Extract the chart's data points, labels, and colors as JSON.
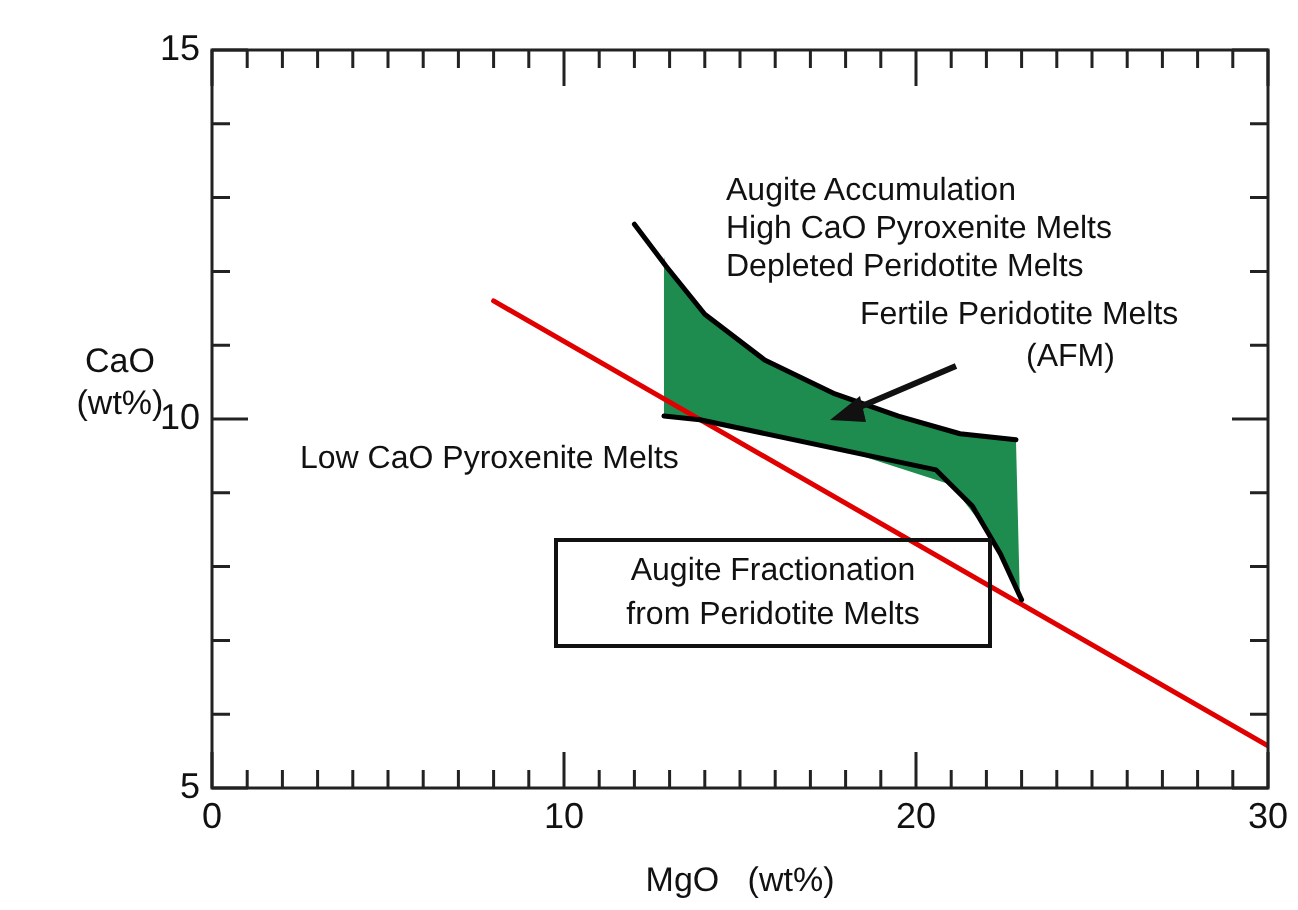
{
  "chart_data": {
    "type": "line",
    "xlabel": "MgO   (wt%)",
    "ylabel": "CaO\n(wt%)",
    "xlim": [
      0,
      30
    ],
    "ylim": [
      5,
      15
    ],
    "xticks": [
      0,
      {
        "value": 1,
        "label": null
      },
      {
        "value": 2,
        "label": null
      },
      {
        "value": 3,
        "label": null
      },
      {
        "value": 4,
        "label": null
      },
      {
        "value": 5,
        "label": null
      },
      {
        "value": 6,
        "label": null
      },
      {
        "value": 7,
        "label": null
      },
      {
        "value": 8,
        "label": null
      },
      {
        "value": 9,
        "label": null
      },
      10,
      {
        "value": 11,
        "label": null
      },
      {
        "value": 12,
        "label": null
      },
      {
        "value": 13,
        "label": null
      },
      {
        "value": 14,
        "label": null
      },
      {
        "value": 15,
        "label": null
      },
      {
        "value": 16,
        "label": null
      },
      {
        "value": 17,
        "label": null
      },
      {
        "value": 18,
        "label": null
      },
      {
        "value": 19,
        "label": null
      },
      20,
      {
        "value": 21,
        "label": null
      },
      {
        "value": 22,
        "label": null
      },
      {
        "value": 23,
        "label": null
      },
      {
        "value": 24,
        "label": null
      },
      {
        "value": 25,
        "label": null
      },
      {
        "value": 26,
        "label": null
      },
      {
        "value": 27,
        "label": null
      },
      {
        "value": 28,
        "label": null
      },
      {
        "value": 29,
        "label": null
      },
      30
    ],
    "yticks": [
      5,
      {
        "value": 6,
        "label": null
      },
      {
        "value": 7,
        "label": null
      },
      {
        "value": 8,
        "label": null
      },
      {
        "value": 9,
        "label": null
      },
      10,
      {
        "value": 11,
        "label": null
      },
      {
        "value": 12,
        "label": null
      },
      {
        "value": 13,
        "label": null
      },
      {
        "value": 14,
        "label": null
      },
      15
    ],
    "grid": false,
    "legend": false,
    "marker": "none",
    "line_style": "solid",
    "series": [
      {
        "color": "#000000",
        "x": [
          12.0,
          12.9,
          14.0,
          15.7,
          17.7,
          19.5,
          21.25,
          22.84
        ],
        "values": [
          12.64,
          12.07,
          11.42,
          10.8,
          10.34,
          10.04,
          9.8,
          9.72
        ]
      },
      {
        "color": "#000000",
        "x": [
          12.84,
          13.86,
          20.57,
          21.6,
          22.4,
          23.0
        ],
        "values": [
          10.04,
          9.99,
          9.31,
          8.82,
          8.17,
          7.55
        ]
      },
      {
        "color": "#e00000",
        "x": [
          8,
          30
        ],
        "values": [
          11.6,
          5.57
        ]
      },
      {
        "type": "area",
        "color": "#1e8c4e",
        "x": [
          12.84,
          12.84,
          12.9,
          14.0,
          15.7,
          17.7,
          19.5,
          21.25,
          22.84,
          22.95,
          22.7,
          22.0,
          21.0,
          18.0,
          15.0,
          12.84
        ],
        "values": [
          10.04,
          12.2,
          12.07,
          11.42,
          10.8,
          10.34,
          10.04,
          9.8,
          9.72,
          7.6,
          7.86,
          8.49,
          9.11,
          9.57,
          9.87,
          10.04
        ]
      }
    ],
    "annotations": [
      "Augite Accumulation\nHigh CaO Pyroxenite Melts\nDepleted Peridotite Melts",
      "Fertile Peridotite Melts",
      "(AFM)",
      "Low CaO Pyroxenite Melts",
      "Augite Fractionation\nfrom Peridotite Melts"
    ]
  }
}
